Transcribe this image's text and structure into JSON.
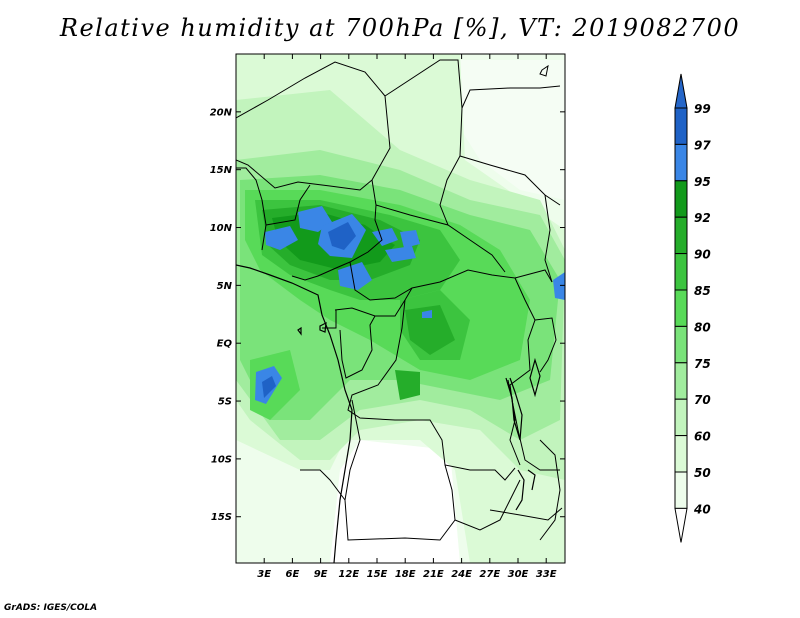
{
  "title": "Relative humidity at 700hPa [%], VT: 2019082700",
  "credit": "GrADS: IGES/COLA",
  "map": {
    "projection": "lat-lon",
    "lon_range": [
      0,
      35
    ],
    "lat_range": [
      -19,
      25
    ],
    "lat_labels": [
      "20N",
      "15N",
      "10N",
      "5N",
      "EQ",
      "5S",
      "10S",
      "15S"
    ],
    "lat_values": [
      20,
      15,
      10,
      5,
      0,
      -5,
      -10,
      -15
    ],
    "lon_labels": [
      "3E",
      "6E",
      "9E",
      "12E",
      "15E",
      "18E",
      "21E",
      "24E",
      "27E",
      "30E",
      "33E"
    ],
    "lon_values": [
      3,
      6,
      9,
      12,
      15,
      18,
      21,
      24,
      27,
      30,
      33
    ]
  },
  "colorbar": {
    "labels": [
      "99",
      "97",
      "95",
      "92",
      "90",
      "85",
      "80",
      "75",
      "70",
      "60",
      "50",
      "40"
    ],
    "colors": [
      "#1f62c6",
      "#3a86e6",
      "#129a1b",
      "#25ad2a",
      "#3cc43f",
      "#58da58",
      "#7ae37a",
      "#a1ec9e",
      "#c2f4bd",
      "#dbfad6",
      "#eefdec"
    ],
    "top_color": "#2566c8",
    "bottom_color": "#ffffff"
  }
}
